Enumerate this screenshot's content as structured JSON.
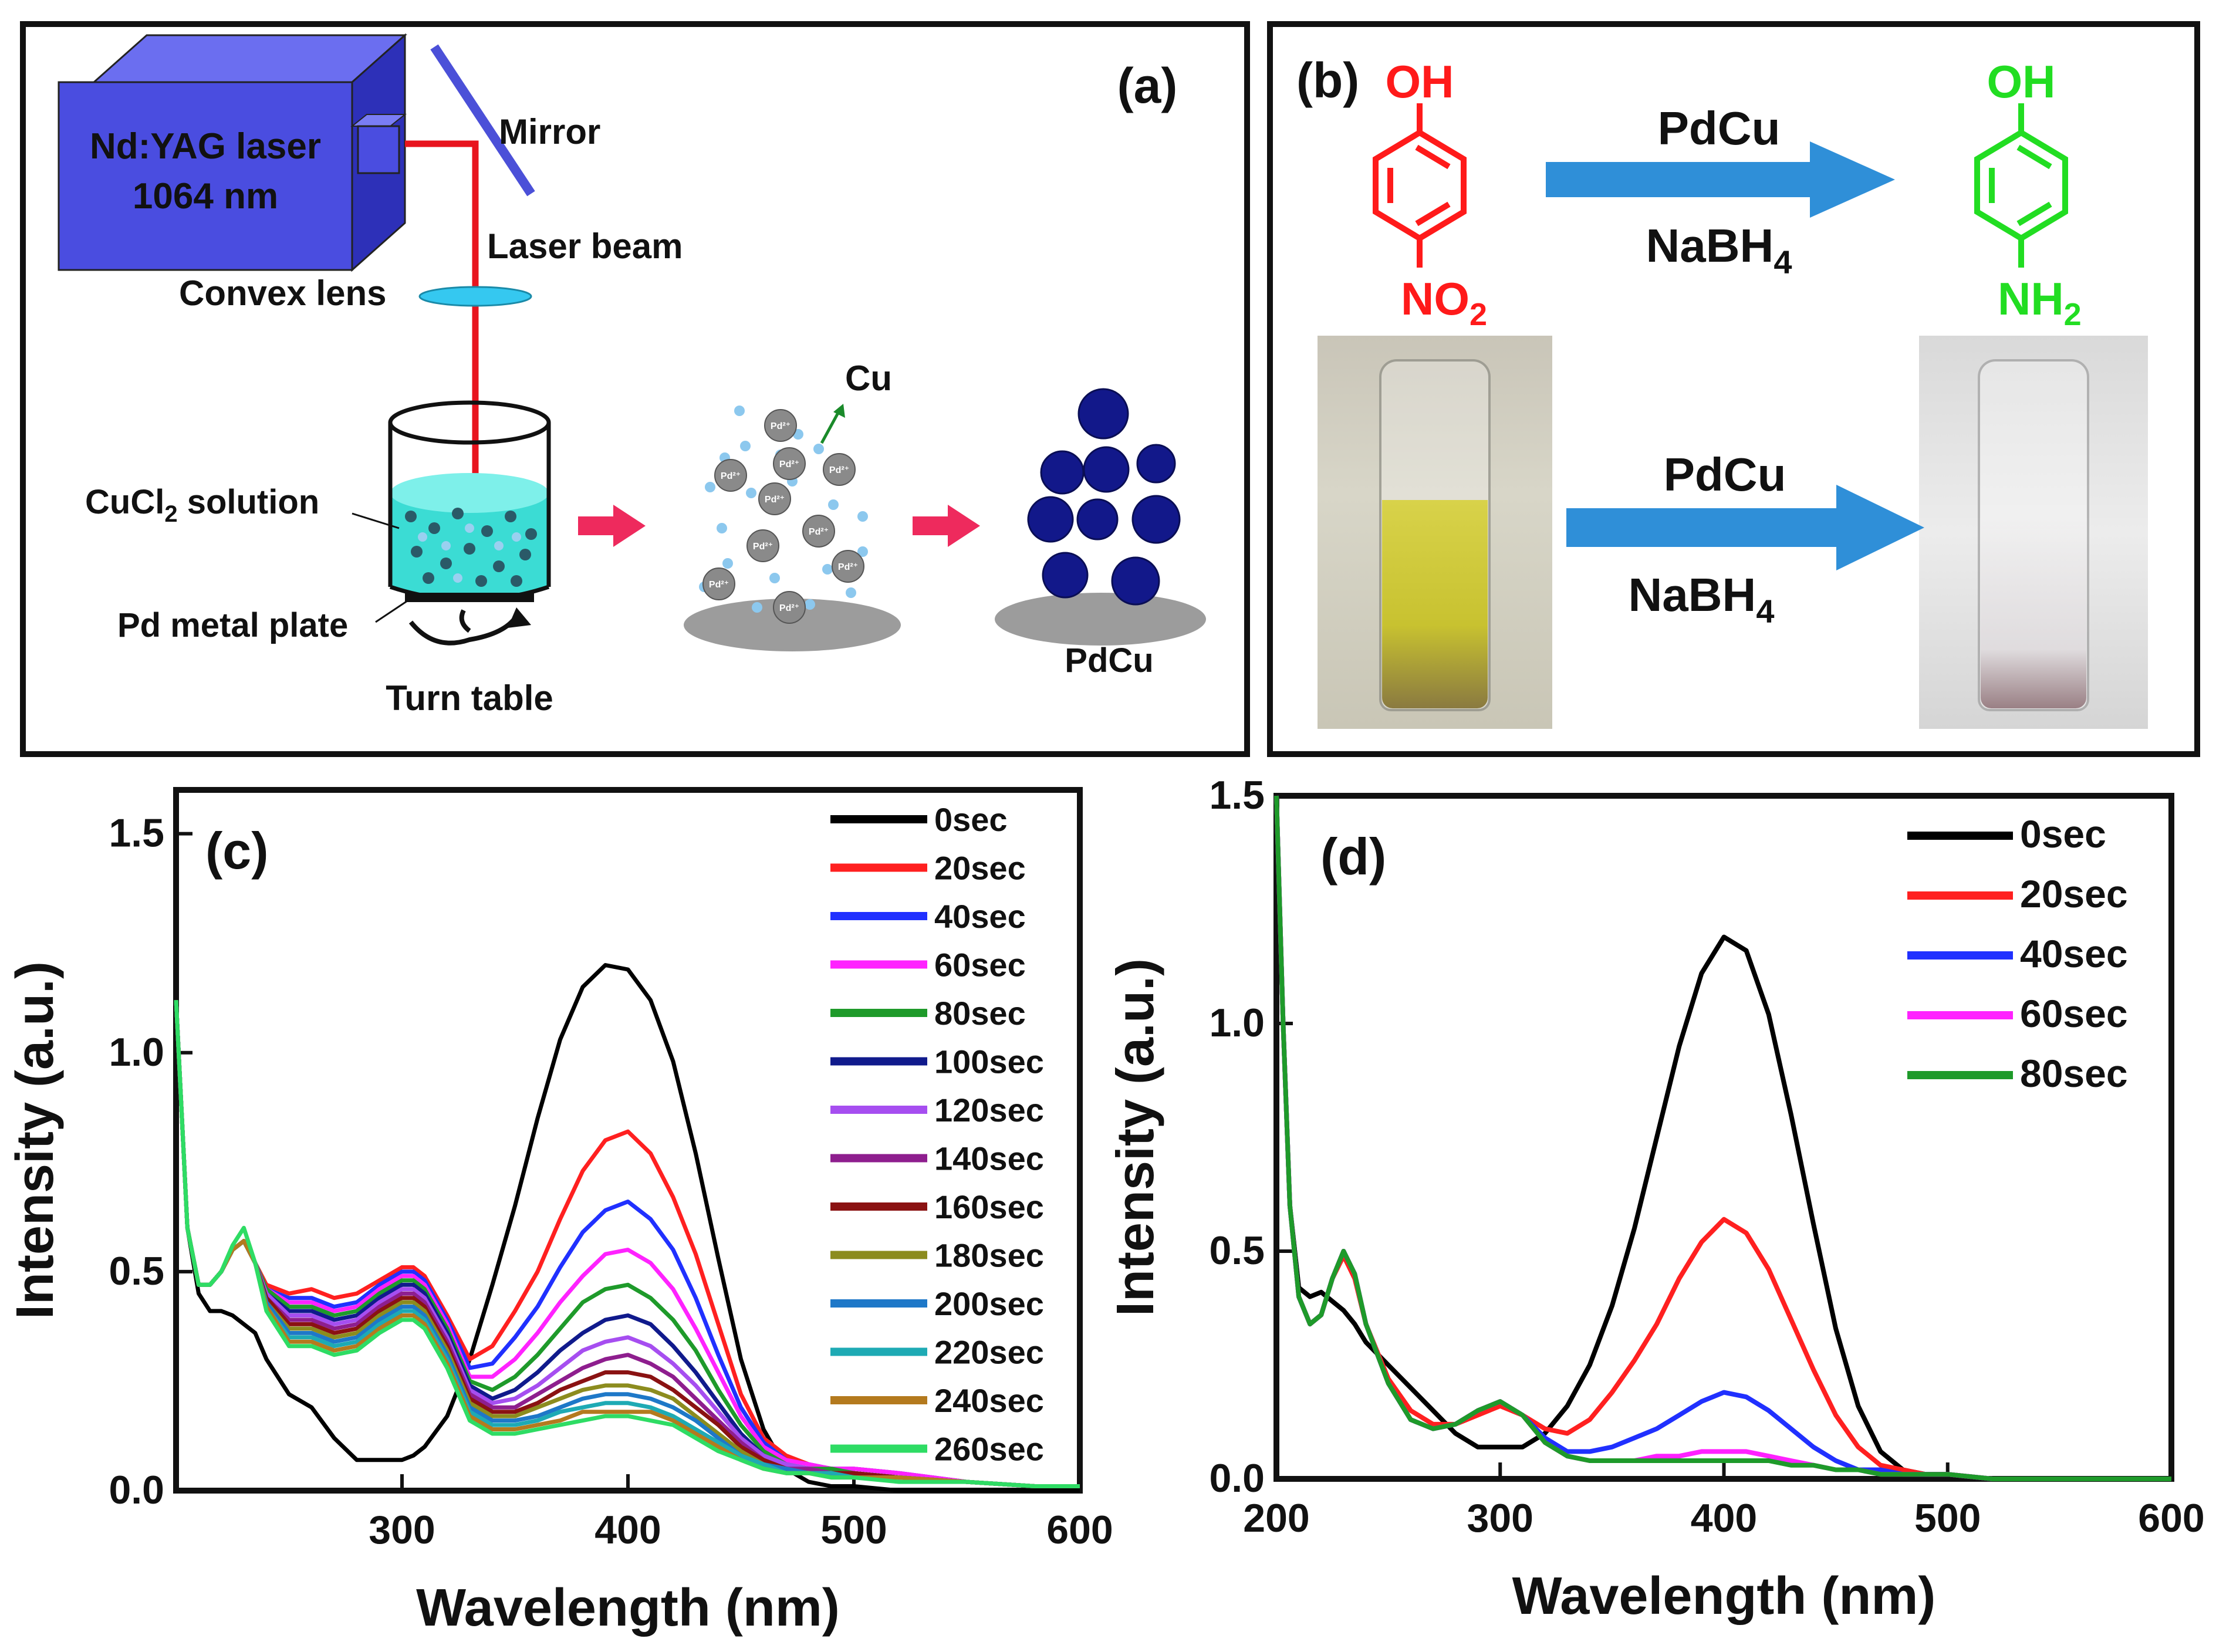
{
  "panel_a": {
    "label": "(a)",
    "laser_line1": "Nd:YAG laser",
    "laser_line2": "1064 nm",
    "mirror": "Mirror",
    "laser_beam": "Laser beam",
    "convex_lens": "Convex lens",
    "solution_pre": "CuCl",
    "solution_sub": "2",
    "solution_post": " solution",
    "metal_plate": "Pd metal plate",
    "turn_table": "Turn table",
    "cu_label": "Cu",
    "pd_ion": "Pd²⁺",
    "product": "PdCu",
    "colors": {
      "laser_box": "#4a4de0",
      "beam": "#e8141e",
      "solution": "#35d6cf",
      "arrow": "#ee2a5d",
      "particle": "#12188a"
    }
  },
  "panel_b": {
    "label": "(b)",
    "reactant_top": "OH",
    "reactant_bottom_pre": "NO",
    "reactant_bottom_sub": "2",
    "product_top": "OH",
    "product_bottom_pre": "NH",
    "product_bottom_sub": "2",
    "catalyst": "PdCu",
    "reductant_pre": "NaBH",
    "reductant_sub": "4",
    "catalyst2": "PdCu",
    "reductant2_pre": "NaBH",
    "reductant2_sub": "4",
    "colors": {
      "reactant": "#ff1a1a",
      "product": "#22dd22",
      "arrow": "#2f8fd8"
    }
  },
  "chart_data": [
    {
      "id": "c",
      "type": "line",
      "panel_label": "(c)",
      "title": "",
      "xlabel": "Wavelength (nm)",
      "ylabel": "Intensity (a.u.)",
      "xlim": [
        200,
        600
      ],
      "ylim": [
        0,
        1.6
      ],
      "xticks": [
        300,
        400,
        500,
        600
      ],
      "xtick_labels": [
        "300",
        "400",
        "500",
        "600"
      ],
      "yticks": [
        0,
        0.5,
        1.0,
        1.5
      ],
      "ytick_labels": [
        "0.0",
        "0.5",
        "1.0",
        "1.5"
      ],
      "legend_position": "top-right",
      "x": [
        200,
        205,
        210,
        215,
        220,
        225,
        230,
        235,
        240,
        250,
        260,
        270,
        280,
        290,
        300,
        305,
        310,
        320,
        330,
        340,
        350,
        360,
        370,
        380,
        390,
        400,
        410,
        420,
        430,
        440,
        450,
        460,
        470,
        480,
        490,
        500,
        520,
        550,
        580,
        600
      ],
      "series": [
        {
          "name": "0sec",
          "color": "#000000",
          "values": [
            1.12,
            0.6,
            0.45,
            0.41,
            0.41,
            0.4,
            0.38,
            0.36,
            0.3,
            0.22,
            0.19,
            0.12,
            0.07,
            0.07,
            0.07,
            0.08,
            0.1,
            0.17,
            0.3,
            0.47,
            0.65,
            0.85,
            1.03,
            1.15,
            1.2,
            1.19,
            1.12,
            0.98,
            0.77,
            0.53,
            0.3,
            0.14,
            0.05,
            0.02,
            0.01,
            0.01,
            0.0,
            0.0,
            0.0,
            0.0
          ]
        },
        {
          "name": "20sec",
          "color": "#ff2020",
          "values": [
            1.12,
            0.6,
            0.47,
            0.47,
            0.5,
            0.55,
            0.57,
            0.52,
            0.47,
            0.45,
            0.46,
            0.44,
            0.45,
            0.48,
            0.51,
            0.51,
            0.49,
            0.4,
            0.3,
            0.33,
            0.41,
            0.5,
            0.62,
            0.73,
            0.8,
            0.82,
            0.77,
            0.67,
            0.54,
            0.38,
            0.22,
            0.12,
            0.08,
            0.06,
            0.05,
            0.05,
            0.04,
            0.02,
            0.01,
            0.01
          ]
        },
        {
          "name": "40sec",
          "color": "#2030ff",
          "values": [
            1.12,
            0.6,
            0.47,
            0.47,
            0.5,
            0.55,
            0.57,
            0.52,
            0.46,
            0.44,
            0.44,
            0.42,
            0.43,
            0.47,
            0.5,
            0.5,
            0.48,
            0.39,
            0.28,
            0.29,
            0.35,
            0.42,
            0.51,
            0.59,
            0.64,
            0.66,
            0.62,
            0.55,
            0.44,
            0.31,
            0.19,
            0.11,
            0.07,
            0.06,
            0.05,
            0.05,
            0.04,
            0.02,
            0.01,
            0.01
          ]
        },
        {
          "name": "60sec",
          "color": "#ff22ff",
          "values": [
            1.12,
            0.6,
            0.47,
            0.47,
            0.5,
            0.55,
            0.57,
            0.52,
            0.46,
            0.43,
            0.43,
            0.41,
            0.42,
            0.46,
            0.49,
            0.49,
            0.47,
            0.38,
            0.26,
            0.26,
            0.3,
            0.36,
            0.43,
            0.49,
            0.54,
            0.55,
            0.52,
            0.46,
            0.37,
            0.27,
            0.17,
            0.1,
            0.07,
            0.06,
            0.05,
            0.05,
            0.04,
            0.02,
            0.01,
            0.01
          ]
        },
        {
          "name": "80sec",
          "color": "#1e9a2a",
          "values": [
            1.12,
            0.6,
            0.47,
            0.47,
            0.5,
            0.55,
            0.57,
            0.52,
            0.46,
            0.42,
            0.42,
            0.4,
            0.41,
            0.45,
            0.48,
            0.48,
            0.46,
            0.37,
            0.25,
            0.23,
            0.26,
            0.31,
            0.37,
            0.43,
            0.46,
            0.47,
            0.44,
            0.39,
            0.32,
            0.23,
            0.15,
            0.09,
            0.06,
            0.05,
            0.05,
            0.04,
            0.03,
            0.02,
            0.01,
            0.01
          ]
        },
        {
          "name": "100sec",
          "color": "#101a8c",
          "values": [
            1.12,
            0.6,
            0.47,
            0.47,
            0.5,
            0.55,
            0.57,
            0.52,
            0.45,
            0.41,
            0.41,
            0.39,
            0.4,
            0.44,
            0.47,
            0.47,
            0.45,
            0.36,
            0.24,
            0.21,
            0.23,
            0.27,
            0.32,
            0.36,
            0.39,
            0.4,
            0.38,
            0.33,
            0.27,
            0.2,
            0.13,
            0.08,
            0.06,
            0.05,
            0.04,
            0.04,
            0.03,
            0.02,
            0.01,
            0.01
          ]
        },
        {
          "name": "120sec",
          "color": "#a64ef0",
          "values": [
            1.12,
            0.6,
            0.47,
            0.47,
            0.5,
            0.55,
            0.57,
            0.52,
            0.45,
            0.4,
            0.4,
            0.38,
            0.39,
            0.43,
            0.46,
            0.46,
            0.44,
            0.35,
            0.23,
            0.2,
            0.21,
            0.24,
            0.28,
            0.32,
            0.34,
            0.35,
            0.33,
            0.29,
            0.24,
            0.18,
            0.12,
            0.08,
            0.06,
            0.05,
            0.04,
            0.04,
            0.03,
            0.02,
            0.01,
            0.01
          ]
        },
        {
          "name": "140sec",
          "color": "#8e1e8e",
          "values": [
            1.12,
            0.6,
            0.47,
            0.47,
            0.5,
            0.55,
            0.57,
            0.52,
            0.44,
            0.39,
            0.39,
            0.37,
            0.38,
            0.42,
            0.45,
            0.45,
            0.43,
            0.34,
            0.22,
            0.19,
            0.19,
            0.22,
            0.25,
            0.28,
            0.3,
            0.31,
            0.29,
            0.26,
            0.21,
            0.16,
            0.11,
            0.07,
            0.05,
            0.05,
            0.04,
            0.04,
            0.03,
            0.02,
            0.01,
            0.01
          ]
        },
        {
          "name": "160sec",
          "color": "#8a1212",
          "values": [
            1.12,
            0.6,
            0.47,
            0.47,
            0.5,
            0.55,
            0.57,
            0.52,
            0.44,
            0.38,
            0.38,
            0.36,
            0.37,
            0.41,
            0.44,
            0.44,
            0.42,
            0.33,
            0.21,
            0.18,
            0.18,
            0.2,
            0.23,
            0.25,
            0.27,
            0.27,
            0.26,
            0.23,
            0.19,
            0.15,
            0.1,
            0.07,
            0.05,
            0.04,
            0.04,
            0.04,
            0.03,
            0.02,
            0.01,
            0.01
          ]
        },
        {
          "name": "180sec",
          "color": "#8c8c1e",
          "values": [
            1.12,
            0.6,
            0.47,
            0.47,
            0.5,
            0.55,
            0.57,
            0.52,
            0.43,
            0.37,
            0.37,
            0.35,
            0.36,
            0.4,
            0.43,
            0.43,
            0.41,
            0.32,
            0.2,
            0.17,
            0.17,
            0.19,
            0.21,
            0.23,
            0.24,
            0.24,
            0.23,
            0.21,
            0.17,
            0.13,
            0.09,
            0.06,
            0.05,
            0.04,
            0.04,
            0.03,
            0.03,
            0.02,
            0.01,
            0.01
          ]
        },
        {
          "name": "200sec",
          "color": "#1e78c8",
          "values": [
            1.12,
            0.6,
            0.47,
            0.47,
            0.5,
            0.55,
            0.57,
            0.52,
            0.43,
            0.36,
            0.36,
            0.34,
            0.35,
            0.39,
            0.42,
            0.42,
            0.4,
            0.31,
            0.19,
            0.16,
            0.16,
            0.17,
            0.19,
            0.21,
            0.22,
            0.22,
            0.21,
            0.19,
            0.16,
            0.12,
            0.08,
            0.06,
            0.05,
            0.04,
            0.04,
            0.03,
            0.03,
            0.02,
            0.01,
            0.01
          ]
        },
        {
          "name": "220sec",
          "color": "#1eaab4",
          "values": [
            1.12,
            0.6,
            0.47,
            0.47,
            0.5,
            0.55,
            0.57,
            0.52,
            0.42,
            0.35,
            0.35,
            0.33,
            0.34,
            0.38,
            0.41,
            0.41,
            0.39,
            0.3,
            0.18,
            0.15,
            0.15,
            0.16,
            0.18,
            0.19,
            0.2,
            0.2,
            0.19,
            0.17,
            0.14,
            0.11,
            0.08,
            0.06,
            0.04,
            0.04,
            0.04,
            0.03,
            0.03,
            0.02,
            0.01,
            0.01
          ]
        },
        {
          "name": "240sec",
          "color": "#b47a1e",
          "values": [
            1.12,
            0.6,
            0.47,
            0.47,
            0.5,
            0.55,
            0.57,
            0.52,
            0.42,
            0.34,
            0.34,
            0.32,
            0.33,
            0.37,
            0.4,
            0.4,
            0.38,
            0.29,
            0.17,
            0.14,
            0.14,
            0.15,
            0.16,
            0.18,
            0.18,
            0.18,
            0.18,
            0.16,
            0.13,
            0.1,
            0.07,
            0.05,
            0.04,
            0.04,
            0.03,
            0.03,
            0.03,
            0.02,
            0.01,
            0.01
          ]
        },
        {
          "name": "260sec",
          "color": "#2edc64",
          "values": [
            1.12,
            0.6,
            0.47,
            0.47,
            0.5,
            0.56,
            0.6,
            0.52,
            0.41,
            0.33,
            0.33,
            0.31,
            0.32,
            0.36,
            0.39,
            0.39,
            0.37,
            0.28,
            0.16,
            0.13,
            0.13,
            0.14,
            0.15,
            0.16,
            0.17,
            0.17,
            0.16,
            0.15,
            0.12,
            0.09,
            0.07,
            0.05,
            0.04,
            0.04,
            0.03,
            0.03,
            0.02,
            0.02,
            0.01,
            0.01
          ]
        }
      ]
    },
    {
      "id": "d",
      "type": "line",
      "panel_label": "(d)",
      "title": "",
      "xlabel": "Wavelength (nm)",
      "ylabel": "Intensity (a.u.)",
      "xlim": [
        200,
        600
      ],
      "ylim": [
        0,
        1.5
      ],
      "xticks": [
        200,
        300,
        400,
        500,
        600
      ],
      "xtick_labels": [
        "200",
        "300",
        "400",
        "500",
        "600"
      ],
      "yticks": [
        0,
        0.5,
        1.0,
        1.5
      ],
      "ytick_labels": [
        "0.0",
        "0.5",
        "1.0",
        "1.5"
      ],
      "legend_position": "top-right",
      "x": [
        200,
        203,
        206,
        210,
        215,
        220,
        225,
        230,
        235,
        240,
        250,
        260,
        270,
        280,
        290,
        300,
        310,
        320,
        330,
        340,
        350,
        360,
        370,
        380,
        390,
        400,
        410,
        420,
        430,
        440,
        450,
        460,
        470,
        480,
        490,
        500,
        520,
        550,
        580,
        600
      ],
      "series": [
        {
          "name": "0sec",
          "color": "#000000",
          "values": [
            1.5,
            1.0,
            0.6,
            0.42,
            0.4,
            0.41,
            0.39,
            0.37,
            0.34,
            0.3,
            0.25,
            0.2,
            0.15,
            0.1,
            0.07,
            0.07,
            0.07,
            0.1,
            0.16,
            0.25,
            0.38,
            0.55,
            0.75,
            0.95,
            1.11,
            1.19,
            1.16,
            1.02,
            0.8,
            0.56,
            0.33,
            0.16,
            0.06,
            0.02,
            0.01,
            0.01,
            0.0,
            0.0,
            0.0,
            0.0
          ]
        },
        {
          "name": "20sec",
          "color": "#ff2020",
          "values": [
            1.5,
            1.0,
            0.6,
            0.4,
            0.34,
            0.36,
            0.44,
            0.49,
            0.44,
            0.34,
            0.22,
            0.15,
            0.12,
            0.12,
            0.14,
            0.16,
            0.14,
            0.11,
            0.1,
            0.13,
            0.19,
            0.26,
            0.34,
            0.44,
            0.52,
            0.57,
            0.54,
            0.46,
            0.35,
            0.24,
            0.14,
            0.07,
            0.03,
            0.02,
            0.01,
            0.01,
            0.0,
            0.0,
            0.0,
            0.0
          ]
        },
        {
          "name": "40sec",
          "color": "#2030ff",
          "values": [
            1.5,
            1.0,
            0.6,
            0.4,
            0.34,
            0.36,
            0.44,
            0.5,
            0.45,
            0.34,
            0.21,
            0.13,
            0.11,
            0.12,
            0.15,
            0.17,
            0.14,
            0.09,
            0.06,
            0.06,
            0.07,
            0.09,
            0.11,
            0.14,
            0.17,
            0.19,
            0.18,
            0.15,
            0.11,
            0.07,
            0.04,
            0.02,
            0.02,
            0.01,
            0.01,
            0.01,
            0.0,
            0.0,
            0.0,
            0.0
          ]
        },
        {
          "name": "60sec",
          "color": "#ff22ff",
          "values": [
            1.5,
            1.0,
            0.6,
            0.4,
            0.34,
            0.36,
            0.44,
            0.5,
            0.45,
            0.34,
            0.21,
            0.13,
            0.11,
            0.12,
            0.15,
            0.17,
            0.14,
            0.08,
            0.05,
            0.04,
            0.04,
            0.04,
            0.05,
            0.05,
            0.06,
            0.06,
            0.06,
            0.05,
            0.04,
            0.03,
            0.02,
            0.02,
            0.01,
            0.01,
            0.01,
            0.01,
            0.0,
            0.0,
            0.0,
            0.0
          ]
        },
        {
          "name": "80sec",
          "color": "#1e9a2a",
          "values": [
            1.5,
            1.0,
            0.6,
            0.4,
            0.34,
            0.36,
            0.44,
            0.5,
            0.45,
            0.34,
            0.21,
            0.13,
            0.11,
            0.12,
            0.15,
            0.17,
            0.14,
            0.08,
            0.05,
            0.04,
            0.04,
            0.04,
            0.04,
            0.04,
            0.04,
            0.04,
            0.04,
            0.04,
            0.03,
            0.03,
            0.02,
            0.02,
            0.01,
            0.01,
            0.01,
            0.01,
            0.0,
            0.0,
            0.0,
            0.0
          ]
        }
      ]
    }
  ]
}
